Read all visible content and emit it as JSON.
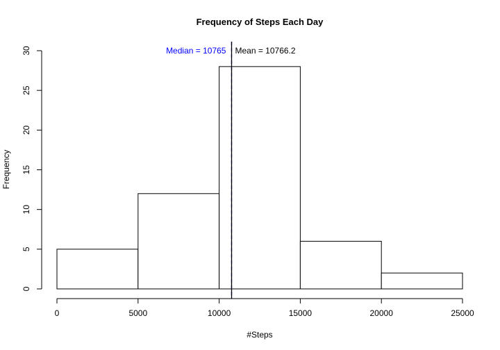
{
  "chart_data": {
    "type": "bar",
    "title": "Frequency of Steps Each Day",
    "xlabel": "#Steps",
    "ylabel": "Frequency",
    "bins": [
      {
        "from": 0,
        "to": 5000,
        "count": 5
      },
      {
        "from": 5000,
        "to": 10000,
        "count": 12
      },
      {
        "from": 10000,
        "to": 15000,
        "count": 28
      },
      {
        "from": 15000,
        "to": 20000,
        "count": 6
      },
      {
        "from": 20000,
        "to": 25000,
        "count": 2
      }
    ],
    "xlim": [
      0,
      25000
    ],
    "ylim": [
      0,
      30
    ],
    "x_ticks": [
      "0",
      "5000",
      "10000",
      "15000",
      "20000",
      "25000"
    ],
    "y_ticks": [
      "0",
      "5",
      "10",
      "15",
      "20",
      "25",
      "30"
    ],
    "reference_lines": [
      {
        "label": "Median = 10765",
        "value": 10765,
        "color": "#0000ff",
        "style": "dashed"
      },
      {
        "label": "Mean = 10766.2",
        "value": 10766.2,
        "color": "#000000",
        "style": "solid"
      }
    ],
    "grid": false,
    "legend": "none"
  }
}
